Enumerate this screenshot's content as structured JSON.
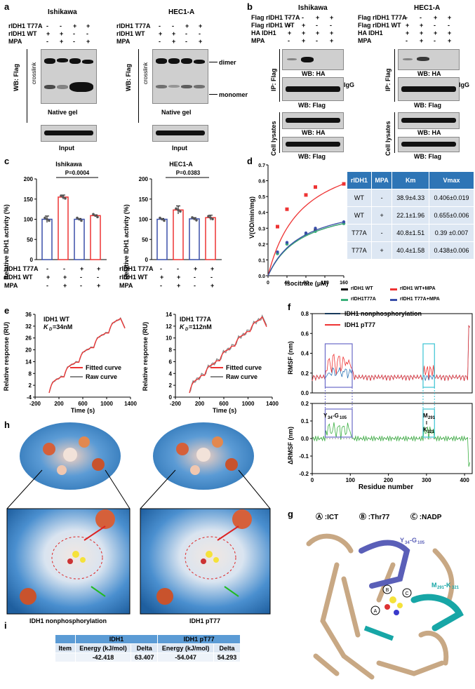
{
  "panel_a": {
    "letter": "a",
    "cell1": "Ishikawa",
    "cell2": "HEC1-A",
    "rows": [
      "rIDH1 T77A",
      "rIDH1 WT",
      "MPA"
    ],
    "signs1": [
      [
        "-",
        "-",
        "+",
        "+"
      ],
      [
        "+",
        "+",
        "-",
        "-"
      ],
      [
        "-",
        "+",
        "-",
        "+"
      ]
    ],
    "signs2": [
      [
        "-",
        "-",
        "+",
        "+"
      ],
      [
        "+",
        "+",
        "-",
        "-"
      ],
      [
        "-",
        "+",
        "-",
        "+"
      ]
    ],
    "wb": "WB: Flag",
    "crosslink": "crosslink",
    "native": "Native gel",
    "input": "Input",
    "dimer": "dimer",
    "monomer": "monomer"
  },
  "panel_b": {
    "letter": "b",
    "cell1": "Ishikawa",
    "cell2": "HEC1-A",
    "rows": [
      "Flag rIDH1 T77A",
      "Flag rIDH1 WT",
      "HA IDH1",
      "MPA"
    ],
    "signs": [
      [
        "-",
        "-",
        "+",
        "+"
      ],
      [
        "+",
        "+",
        "-",
        "-"
      ],
      [
        "+",
        "+",
        "+",
        "+"
      ],
      [
        "-",
        "+",
        "-",
        "+"
      ]
    ],
    "ip": "IP: Flag",
    "lys": "Cell lysates",
    "wbha": "WB: HA",
    "wbflag": "WB: Flag",
    "igg": "IgG"
  },
  "panel_c": {
    "letter": "c",
    "ylabel": "Relative IDH1 activity (%)",
    "title1": "Ishikawa",
    "title2": "HEC1-A",
    "p1": "P=0.0004",
    "p2": "P=0.0383",
    "yticks": [
      "0",
      "50",
      "100",
      "150",
      "200"
    ],
    "rows": [
      "rIDH1 T77A",
      "rIDH1 WT",
      "MPA"
    ],
    "signs": [
      [
        "-",
        "-",
        "+",
        "+"
      ],
      [
        "+",
        "+",
        "-",
        "-"
      ],
      [
        "-",
        "+",
        "-",
        "+"
      ]
    ],
    "chart_data": [
      {
        "type": "bar",
        "title": "Ishikawa",
        "ylabel": "Relative IDH1 activity (%)",
        "ylim": [
          0,
          200
        ],
        "values": [
          100,
          155,
          100,
          109
        ],
        "errors": [
          8,
          5,
          2,
          2
        ]
      },
      {
        "type": "bar",
        "title": "HEC1-A",
        "ylabel": "Relative IDH1 activity (%)",
        "ylim": [
          0,
          200
        ],
        "values": [
          100,
          123,
          101,
          104
        ],
        "errors": [
          2,
          10,
          3,
          6
        ]
      }
    ]
  },
  "panel_d": {
    "letter": "d",
    "ylabel": "V(OD/min/mg)",
    "xlabel": "Isocitrate (μM)",
    "xticks": [
      "0",
      "40",
      "80",
      "120",
      "160"
    ],
    "yticks": [
      "0.0",
      "0.1",
      "0.2",
      "0.3",
      "0.4",
      "0.5",
      "0.6",
      "0.7"
    ],
    "legend": [
      "rIDH1 WT",
      "rIDH1 WT+MPA",
      "rIDH1T77A",
      "rIDH1 T77A+MPA"
    ],
    "chart_data": {
      "type": "line",
      "xlabel": "Isocitrate (μM)",
      "ylabel": "V(OD/min/mg)",
      "xlim": [
        0,
        160
      ],
      "ylim": [
        0,
        0.7
      ],
      "x": [
        20,
        40,
        80,
        100,
        160
      ],
      "series": [
        {
          "name": "rIDH1 WT",
          "values": [
            0.14,
            0.2,
            0.26,
            0.29,
            0.33
          ]
        },
        {
          "name": "rIDH1 WT+MPA",
          "values": [
            0.31,
            0.42,
            0.51,
            0.56,
            0.58
          ]
        },
        {
          "name": "rIDH1T77A",
          "values": [
            0.14,
            0.2,
            0.26,
            0.28,
            0.33
          ]
        },
        {
          "name": "rIDH1 T77A+MPA",
          "values": [
            0.15,
            0.21,
            0.27,
            0.3,
            0.34
          ]
        }
      ]
    },
    "table": [
      [
        "rIDH1",
        "MPA",
        "Km",
        "Vmax"
      ],
      [
        "WT",
        "-",
        "38.9±4.33",
        "0.406±0.019"
      ],
      [
        "WT",
        "+",
        "22.1±1.96",
        "0.655±0.006"
      ],
      [
        "T77A",
        "-",
        "40.8±1.51",
        "0.39 ±0.007"
      ],
      [
        "T77A",
        "+",
        "40.4±1.58",
        "0.438±0.006"
      ]
    ]
  },
  "panel_e": {
    "letter": "e",
    "ylabel": "Relative response (RU)",
    "xlabel": "Time  (s)",
    "name1": "IDH1 WT",
    "kd1": "=34nM",
    "name2": "IDH1 T77A",
    "kd2": "=112nM",
    "kd": "K",
    "fitted": "Fitted curve",
    "raw": "Raw curve",
    "xticks": [
      "-200",
      "200",
      "600",
      "1000",
      "1400"
    ],
    "xticks2": [
      "-200",
      "200",
      "600",
      "1000",
      "1400"
    ],
    "yticks1": [
      "-4",
      "2",
      "8",
      "14",
      "20",
      "26",
      "32",
      "36"
    ],
    "yticks2": [
      "0",
      "2",
      "4",
      "6",
      "8",
      "10",
      "12",
      "14"
    ]
  },
  "panel_f": {
    "letter": "f",
    "l1": "IDH1 nonphosphorylation",
    "l2": "IDH1 pT77",
    "ylabel1": "RMSF  (nm)",
    "ylabel2": "ΔRMSF  (nm)",
    "xlabel": "Residue number",
    "yt1": [
      "0.0",
      "0.2",
      "0.4",
      "0.6",
      "0.8"
    ],
    "yt2": [
      "-0.2",
      "-0.1",
      "0.0",
      "0.1",
      "0.2"
    ],
    "xt": [
      "0",
      "100",
      "200",
      "300",
      "400"
    ],
    "r1": "Y",
    "r1s": "34",
    "r1m": "-G",
    "r1e": "105",
    "r2": "M",
    "r2s": "291",
    "r2b": "I",
    "r2c": "K",
    "r2e": "321"
  },
  "panel_g": {
    "letter": "g",
    "a": "Ⓐ :ICT",
    "b": "Ⓑ :Thr77",
    "c": "Ⓒ :NADP",
    "y": "Y",
    "ys": "34",
    "ym": "-G",
    "ye": "105",
    "m": "M",
    "ms": "291",
    "mm": "-K",
    "me": "321"
  },
  "panel_h": {
    "letter": "h",
    "cap1": "IDH1 nonphosphorylation",
    "cap2": "IDH1 pT77"
  },
  "panel_i": {
    "letter": "i",
    "h1": "IDH1",
    "h2": "IDH1 pT77",
    "item": "Item",
    "energy": "Energy (kJ/mol)",
    "delta": "Delta",
    "v": [
      "-42.418",
      "63.407",
      "-54.047",
      "54.293"
    ]
  }
}
